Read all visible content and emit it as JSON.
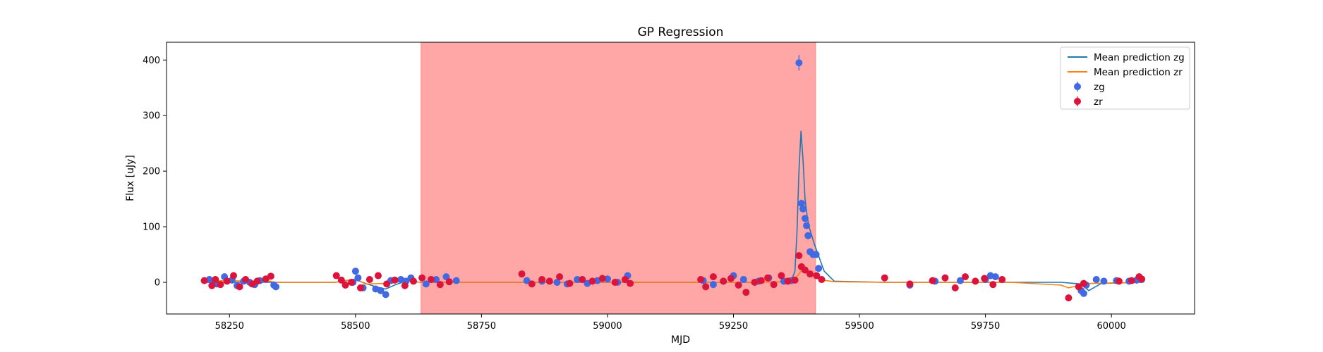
{
  "chart_data": {
    "type": "scatter",
    "title": "GP Regression",
    "xlabel": "MJD",
    "ylabel": "Flux [uJy]",
    "xlim": [
      58125,
      60165
    ],
    "ylim": [
      -57,
      432
    ],
    "xticks": [
      58250,
      58500,
      58750,
      59000,
      59250,
      59500,
      59750,
      60000
    ],
    "yticks": [
      0,
      100,
      200,
      300,
      400
    ],
    "grid": false,
    "legend_position": "top-right",
    "shaded_region": {
      "x_start": 58630,
      "x_end": 59413,
      "color": "#ff6b6b"
    },
    "lines": [
      {
        "name": "Mean prediction zg",
        "color": "#1f77b4",
        "x": [
          58200,
          58330,
          58340,
          58460,
          58500,
          58520,
          58540,
          58560,
          58580,
          58600,
          58630,
          58700,
          59000,
          59300,
          59350,
          59365,
          59372,
          59376,
          59380,
          59384,
          59388,
          59392,
          59396,
          59400,
          59405,
          59410,
          59416,
          59422,
          59430,
          59450,
          59550,
          59600,
          59700,
          59800,
          59900,
          59940,
          59955,
          59980,
          60060
        ],
        "y": [
          0,
          0,
          0,
          0,
          5,
          -2,
          -8,
          -12,
          -4,
          2,
          0,
          0,
          0,
          0,
          1,
          3,
          20,
          90,
          200,
          272,
          220,
          150,
          120,
          100,
          85,
          70,
          55,
          40,
          20,
          2,
          0,
          0,
          0,
          0,
          0,
          -3,
          -15,
          -2,
          0
        ]
      },
      {
        "name": "Mean prediction zr",
        "color": "#ff7f0e",
        "x": [
          58200,
          58330,
          58340,
          58460,
          58480,
          58500,
          58520,
          58560,
          58600,
          58630,
          59000,
          59300,
          59350,
          59370,
          59380,
          59390,
          59400,
          59410,
          59420,
          59450,
          59550,
          59600,
          59700,
          59800,
          59900,
          59915,
          59935,
          59960,
          60060
        ],
        "y": [
          3,
          2,
          0,
          0,
          3,
          6,
          -3,
          -2,
          2,
          0,
          0,
          0,
          1,
          5,
          15,
          28,
          18,
          12,
          5,
          1,
          0,
          0,
          0,
          0,
          -5,
          -10,
          -6,
          -2,
          0
        ]
      }
    ],
    "series": [
      {
        "name": "zg",
        "color": "#4169e1",
        "x": [
          58210,
          58218,
          58225,
          58240,
          58255,
          58265,
          58278,
          58290,
          58300,
          58310,
          58338,
          58342,
          58495,
          58500,
          58505,
          58515,
          58540,
          58550,
          58560,
          58570,
          58590,
          58600,
          58610,
          58640,
          58660,
          58680,
          58700,
          58840,
          58870,
          58900,
          58920,
          58940,
          58960,
          58980,
          59000,
          59020,
          59040,
          59190,
          59210,
          59230,
          59250,
          59270,
          59300,
          59320,
          59350,
          59365,
          59380,
          59385,
          59388,
          59392,
          59395,
          59398,
          59402,
          59408,
          59414,
          59419,
          59600,
          59650,
          59700,
          59750,
          59760,
          59770,
          59940,
          59945,
          59950,
          59970,
          59985,
          60010,
          60035,
          60050,
          60060
        ],
        "y": [
          5,
          0,
          -3,
          10,
          4,
          -6,
          2,
          0,
          -4,
          3,
          -5,
          -8,
          0,
          20,
          8,
          -10,
          -12,
          -15,
          -22,
          3,
          5,
          2,
          8,
          -3,
          5,
          10,
          3,
          3,
          2,
          0,
          -3,
          5,
          -2,
          3,
          6,
          0,
          12,
          3,
          -4,
          2,
          12,
          5,
          2,
          8,
          2,
          3,
          395,
          142,
          132,
          115,
          102,
          84,
          55,
          50,
          50,
          25,
          -5,
          2,
          3,
          5,
          12,
          10,
          -15,
          -20,
          -5,
          5,
          2,
          3,
          2,
          4,
          5
        ]
      },
      {
        "name": "zr",
        "color": "#dc143c",
        "x": [
          58200,
          58215,
          58222,
          58232,
          58245,
          58258,
          58270,
          58282,
          58295,
          58305,
          58322,
          58332,
          58462,
          58472,
          58480,
          58492,
          58510,
          58528,
          58545,
          58562,
          58578,
          58598,
          58615,
          58632,
          58650,
          58668,
          58686,
          58830,
          58850,
          58870,
          58885,
          58905,
          58925,
          58950,
          58970,
          58990,
          59015,
          59035,
          59045,
          59185,
          59195,
          59210,
          59230,
          59245,
          59260,
          59275,
          59292,
          59305,
          59318,
          59330,
          59345,
          59358,
          59372,
          59380,
          59385,
          59392,
          59402,
          59415,
          59425,
          59550,
          59600,
          59645,
          59670,
          59690,
          59710,
          59730,
          59748,
          59765,
          59783,
          59915,
          59935,
          59945,
          60015,
          60040,
          60055,
          60060
        ],
        "y": [
          3,
          -6,
          5,
          -4,
          2,
          12,
          -8,
          5,
          -3,
          2,
          6,
          11,
          12,
          4,
          -5,
          0,
          -10,
          5,
          12,
          -3,
          4,
          -6,
          2,
          8,
          5,
          -4,
          1,
          15,
          -3,
          5,
          2,
          10,
          -2,
          5,
          2,
          7,
          0,
          5,
          -2,
          5,
          -8,
          10,
          2,
          7,
          -5,
          -18,
          0,
          3,
          8,
          -4,
          12,
          2,
          4,
          48,
          28,
          22,
          15,
          12,
          5,
          8,
          -3,
          3,
          8,
          -10,
          10,
          2,
          7,
          -4,
          5,
          -28,
          -8,
          -2,
          2,
          3,
          10,
          6
        ]
      }
    ]
  }
}
